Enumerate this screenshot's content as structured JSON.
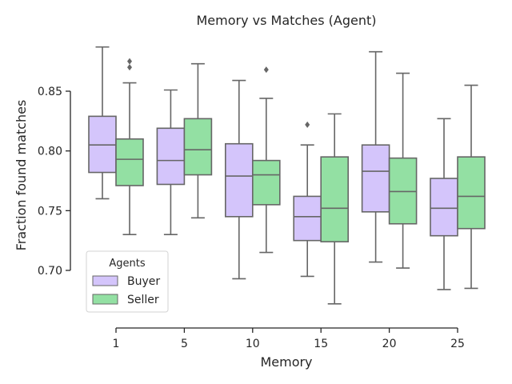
{
  "chart_data": {
    "type": "box",
    "title": "Memory vs Matches (Agent)",
    "xlabel": "Memory",
    "ylabel": "Fraction found matches",
    "categories": [
      "1",
      "5",
      "10",
      "15",
      "20",
      "25"
    ],
    "ylim": [
      0.65,
      0.895
    ],
    "yticks": [
      "0.70",
      "0.75",
      "0.80",
      "0.85"
    ],
    "ytick_values": [
      0.7,
      0.75,
      0.8,
      0.85
    ],
    "grid": false,
    "legend_position": "lower-left",
    "legend_title": "Agents",
    "series": [
      {
        "name": "Buyer",
        "color": "#d4c5fb",
        "boxes": [
          {
            "whisker_low": 0.76,
            "q1": 0.782,
            "median": 0.805,
            "q3": 0.829,
            "whisker_high": 0.887,
            "outliers": []
          },
          {
            "whisker_low": 0.73,
            "q1": 0.772,
            "median": 0.792,
            "q3": 0.819,
            "whisker_high": 0.851,
            "outliers": []
          },
          {
            "whisker_low": 0.693,
            "q1": 0.745,
            "median": 0.779,
            "q3": 0.806,
            "whisker_high": 0.859,
            "outliers": []
          },
          {
            "whisker_low": 0.695,
            "q1": 0.725,
            "median": 0.745,
            "q3": 0.762,
            "whisker_high": 0.805,
            "outliers": [
              0.822
            ]
          },
          {
            "whisker_low": 0.707,
            "q1": 0.749,
            "median": 0.783,
            "q3": 0.805,
            "whisker_high": 0.883,
            "outliers": []
          },
          {
            "whisker_low": 0.684,
            "q1": 0.729,
            "median": 0.752,
            "q3": 0.777,
            "whisker_high": 0.827,
            "outliers": []
          }
        ]
      },
      {
        "name": "Seller",
        "color": "#93e0a3",
        "boxes": [
          {
            "whisker_low": 0.73,
            "q1": 0.771,
            "median": 0.793,
            "q3": 0.81,
            "whisker_high": 0.857,
            "outliers": [
              0.87,
              0.875
            ]
          },
          {
            "whisker_low": 0.744,
            "q1": 0.78,
            "median": 0.801,
            "q3": 0.827,
            "whisker_high": 0.873,
            "outliers": []
          },
          {
            "whisker_low": 0.715,
            "q1": 0.755,
            "median": 0.78,
            "q3": 0.792,
            "whisker_high": 0.844,
            "outliers": [
              0.868
            ]
          },
          {
            "whisker_low": 0.672,
            "q1": 0.724,
            "median": 0.752,
            "q3": 0.795,
            "whisker_high": 0.831,
            "outliers": []
          },
          {
            "whisker_low": 0.702,
            "q1": 0.739,
            "median": 0.766,
            "q3": 0.794,
            "whisker_high": 0.865,
            "outliers": []
          },
          {
            "whisker_low": 0.685,
            "q1": 0.735,
            "median": 0.762,
            "q3": 0.795,
            "whisker_high": 0.855,
            "outliers": []
          }
        ]
      }
    ]
  },
  "colors": {
    "axis": "#262626",
    "box_edge": "#666666",
    "legend_border": "#cccccc"
  }
}
